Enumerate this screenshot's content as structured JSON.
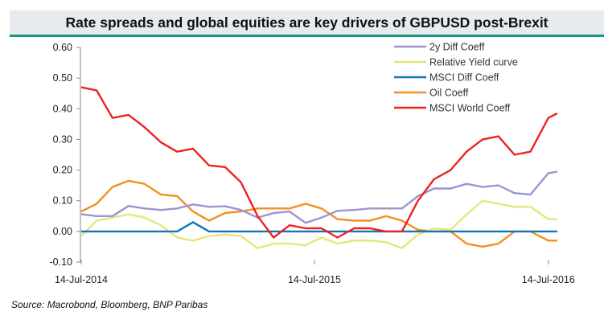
{
  "header": {
    "title": "Rate spreads and global equities are key drivers of GBPUSD post-Brexit"
  },
  "footer": {
    "source": "Source: Macrobond, Bloomberg, BNP Paribas"
  },
  "chart_data": {
    "type": "line",
    "title": "Rate spreads and global equities are key drivers of GBPUSD post-Brexit",
    "xlabel": "",
    "ylabel": "",
    "ylim": [
      -0.1,
      0.6
    ],
    "yticks": [
      "0.60",
      "0.50",
      "0.40",
      "0.30",
      "0.20",
      "0.10",
      "0.00",
      "-0.10"
    ],
    "xticks": [
      {
        "date": "2014-07-14",
        "label": "14-Jul-2014"
      },
      {
        "date": "2015-07-14",
        "label": "14-Jul-2015"
      },
      {
        "date": "2016-07-14",
        "label": "14-Jul-2016"
      }
    ],
    "legend_position": "top-right",
    "grid": false,
    "x": [
      "2014-07-14",
      "2014-08-07",
      "2014-09-01",
      "2014-09-26",
      "2014-10-21",
      "2014-11-16",
      "2014-12-11",
      "2015-01-05",
      "2015-01-30",
      "2015-02-24",
      "2015-03-21",
      "2015-04-16",
      "2015-05-11",
      "2015-06-05",
      "2015-06-30",
      "2015-07-25",
      "2015-08-19",
      "2015-09-14",
      "2015-10-09",
      "2015-11-03",
      "2015-11-28",
      "2015-12-23",
      "2016-01-17",
      "2016-02-12",
      "2016-03-08",
      "2016-04-02",
      "2016-04-27",
      "2016-05-22",
      "2016-06-16",
      "2016-07-14",
      "2016-07-28"
    ],
    "series": [
      {
        "name": "2y Diff Coeff",
        "color": "#9c94d2",
        "values": [
          0.056,
          0.05,
          0.05,
          0.083,
          0.075,
          0.07,
          0.075,
          0.088,
          0.08,
          0.082,
          0.07,
          0.045,
          0.06,
          0.065,
          0.028,
          0.045,
          0.067,
          0.07,
          0.075,
          0.075,
          0.075,
          0.115,
          0.14,
          0.14,
          0.155,
          0.145,
          0.15,
          0.125,
          0.12,
          0.19,
          0.195
        ]
      },
      {
        "name": "Relative Yield curve",
        "color": "#e4e878",
        "values": [
          -0.015,
          0.035,
          0.045,
          0.056,
          0.045,
          0.02,
          -0.02,
          -0.03,
          -0.015,
          -0.01,
          -0.015,
          -0.055,
          -0.04,
          -0.04,
          -0.045,
          -0.02,
          -0.04,
          -0.03,
          -0.03,
          -0.035,
          -0.055,
          -0.01,
          0.01,
          0.005,
          0.055,
          0.1,
          0.09,
          0.08,
          0.08,
          0.04,
          0.04
        ]
      },
      {
        "name": "MSCI Diff Coeff",
        "color": "#1177b5",
        "values": [
          0,
          0,
          0,
          0,
          0,
          0,
          0,
          0.03,
          0,
          0,
          0,
          0,
          0,
          0,
          0,
          0,
          0,
          0,
          0,
          0,
          0,
          0,
          0,
          0,
          0,
          0,
          0,
          0,
          0,
          0,
          0
        ]
      },
      {
        "name": "Oil Coeff",
        "color": "#f39022",
        "values": [
          0.065,
          0.09,
          0.145,
          0.165,
          0.155,
          0.12,
          0.115,
          0.065,
          0.035,
          0.06,
          0.065,
          0.075,
          0.075,
          0.075,
          0.09,
          0.075,
          0.04,
          0.035,
          0.035,
          0.05,
          0.035,
          0.005,
          0.0,
          0.0,
          -0.04,
          -0.05,
          -0.04,
          0.0,
          0.0,
          -0.03,
          -0.03
        ]
      },
      {
        "name": "MSCI World Coeff",
        "color": "#ee2222",
        "values": [
          0.47,
          0.46,
          0.37,
          0.38,
          0.34,
          0.29,
          0.26,
          0.27,
          0.215,
          0.21,
          0.16,
          0.05,
          -0.02,
          0.02,
          0.01,
          0.01,
          -0.02,
          0.01,
          0.01,
          0.0,
          0.0,
          0.1,
          0.17,
          0.2,
          0.26,
          0.3,
          0.31,
          0.25,
          0.26,
          0.37,
          0.385
        ]
      }
    ]
  }
}
